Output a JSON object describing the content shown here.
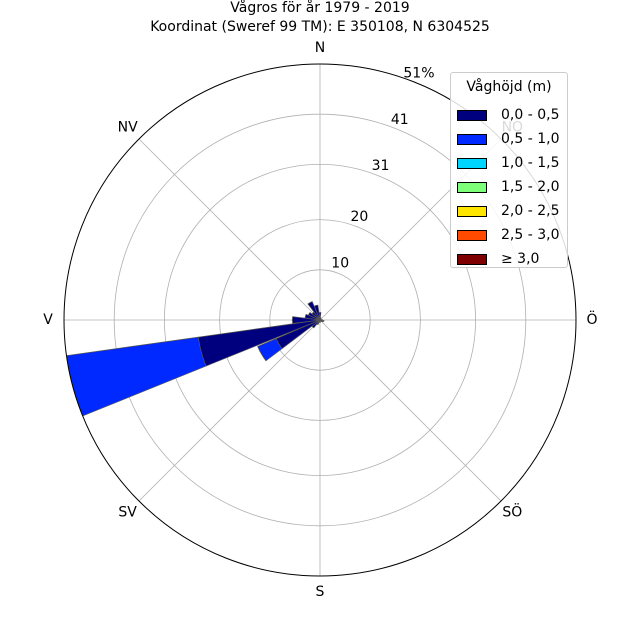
{
  "chart_data": {
    "type": "polar-bar",
    "title": "Vågros för år 1979 - 2019",
    "subtitle": "Koordinat (Sweref 99 TM): E 350108, N 6304525",
    "direction_labels": [
      "N",
      "NV",
      "V",
      "SV",
      "S",
      "SÖ",
      "Ö",
      "NÖ"
    ],
    "radial_ticks": [
      "10",
      "20",
      "31",
      "41",
      "51%"
    ],
    "rmax": 51,
    "legend": {
      "title": "Våghöjd (m)",
      "placement": "upper-right",
      "items": [
        {
          "label": "0,0 - 0,5",
          "color": "#00007f"
        },
        {
          "label": "0,5 - 1,0",
          "color": "#0029ff"
        },
        {
          "label": "1,0 - 1,5",
          "color": "#00d5ff"
        },
        {
          "label": "1,5 - 2,0",
          "color": "#7dff7a"
        },
        {
          "label": "2,0 - 2,5",
          "color": "#ffe600"
        },
        {
          "label": "2,5 - 3,0",
          "color": "#ff4a00"
        },
        {
          "label": "≥ 3,0",
          "color": "#7f0000"
        }
      ]
    },
    "sectors": [
      {
        "direction_deg": 0,
        "values": [
          1.5,
          0,
          0,
          0,
          0,
          0,
          0
        ]
      },
      {
        "direction_deg": 15,
        "values": [
          0.5,
          0,
          0,
          0,
          0,
          0,
          0
        ]
      },
      {
        "direction_deg": 30,
        "values": [
          0.3,
          0,
          0,
          0,
          0,
          0,
          0
        ]
      },
      {
        "direction_deg": 45,
        "values": [
          0.3,
          0,
          0,
          0,
          0,
          0,
          0
        ]
      },
      {
        "direction_deg": 60,
        "values": [
          0.2,
          0,
          0,
          0,
          0,
          0,
          0
        ]
      },
      {
        "direction_deg": 75,
        "values": [
          0.3,
          0,
          0,
          0,
          0,
          0,
          0
        ]
      },
      {
        "direction_deg": 90,
        "values": [
          0.5,
          0,
          0,
          0,
          0,
          0,
          0
        ]
      },
      {
        "direction_deg": 105,
        "values": [
          0.8,
          0,
          0,
          0,
          0,
          0,
          0
        ]
      },
      {
        "direction_deg": 120,
        "values": [
          0.6,
          0,
          0,
          0,
          0,
          0,
          0
        ]
      },
      {
        "direction_deg": 135,
        "values": [
          0.4,
          0,
          0,
          0,
          0,
          0,
          0
        ]
      },
      {
        "direction_deg": 150,
        "values": [
          0.3,
          0,
          0,
          0,
          0,
          0,
          0
        ]
      },
      {
        "direction_deg": 165,
        "values": [
          0.2,
          0,
          0,
          0,
          0,
          0,
          0
        ]
      },
      {
        "direction_deg": 180,
        "values": [
          0.5,
          0,
          0,
          0,
          0,
          0,
          0
        ]
      },
      {
        "direction_deg": 195,
        "values": [
          0.4,
          0,
          0,
          0,
          0,
          0,
          0
        ]
      },
      {
        "direction_deg": 210,
        "values": [
          1.0,
          0,
          0,
          0,
          0,
          0,
          0
        ]
      },
      {
        "direction_deg": 225,
        "values": [
          2.0,
          0,
          0,
          0,
          0,
          0,
          0
        ]
      },
      {
        "direction_deg": 240,
        "values": [
          9.5,
          4.0,
          0,
          0,
          0,
          0,
          0
        ]
      },
      {
        "direction_deg": 255,
        "values": [
          24.5,
          26.5,
          0,
          0,
          0,
          0,
          0
        ]
      },
      {
        "direction_deg": 270,
        "values": [
          5.5,
          0,
          0,
          0,
          0,
          0,
          0
        ]
      },
      {
        "direction_deg": 285,
        "values": [
          3.0,
          0,
          0,
          0,
          0,
          0,
          0
        ]
      },
      {
        "direction_deg": 300,
        "values": [
          2.5,
          0,
          0,
          0,
          0,
          0,
          0
        ]
      },
      {
        "direction_deg": 315,
        "values": [
          2.0,
          0,
          0,
          0,
          0,
          0,
          0
        ]
      },
      {
        "direction_deg": 330,
        "values": [
          4.0,
          0,
          0,
          0,
          0,
          0,
          0
        ]
      },
      {
        "direction_deg": 345,
        "values": [
          3.0,
          0,
          0,
          0,
          0,
          0,
          0
        ]
      }
    ],
    "grid": true
  }
}
